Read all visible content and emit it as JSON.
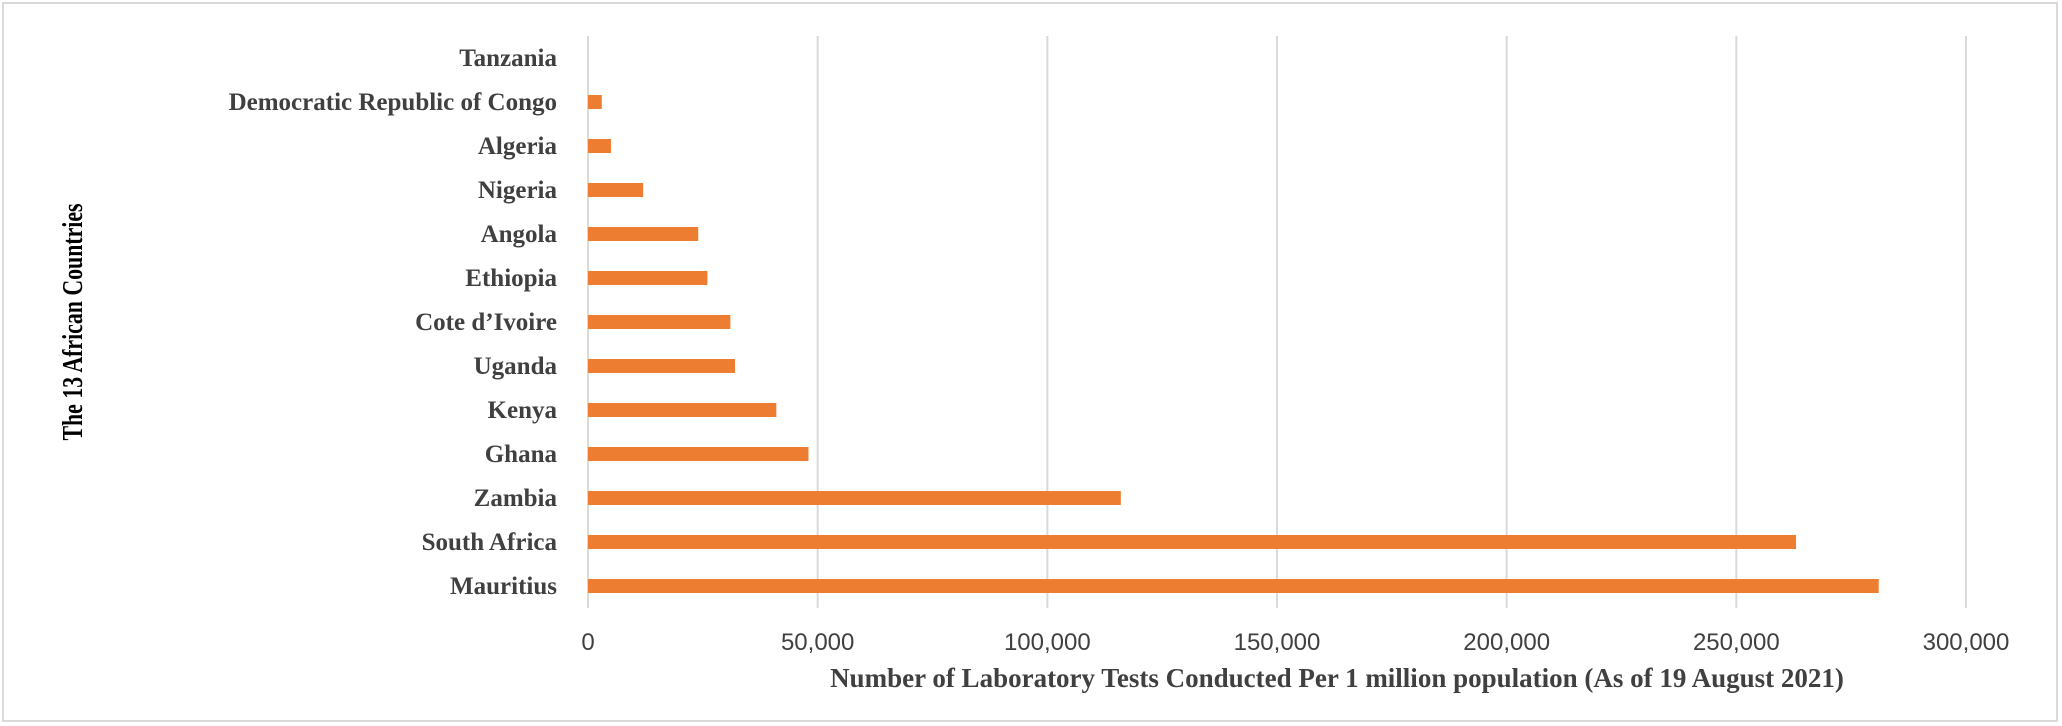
{
  "chart_data": {
    "type": "bar",
    "orientation": "horizontal",
    "xlabel": "Number of Laboratory Tests Conducted Per 1 million population (As of 19 August 2021)",
    "ylabel": "The 13 African Countries",
    "categories": [
      "Tanzania",
      "Democratic Republic of Congo",
      "Algeria",
      "Nigeria",
      "Angola",
      "Ethiopia",
      "Cote d’Ivoire",
      "Uganda",
      "Kenya",
      "Ghana",
      "Zambia",
      "South Africa",
      "Mauritius"
    ],
    "values": [
      0,
      3000,
      5000,
      12000,
      24000,
      26000,
      31000,
      32000,
      41000,
      48000,
      116000,
      263000,
      281000
    ],
    "xlim": [
      0,
      300000
    ],
    "xticks": [
      0,
      50000,
      100000,
      150000,
      200000,
      250000,
      300000
    ],
    "xtick_labels": [
      "0",
      "50,000",
      "100,000",
      "150,000",
      "200,000",
      "250,000",
      "300,000"
    ],
    "grid": "vertical",
    "legend": "none",
    "colors": {
      "bar": "#ed7d31",
      "grid": "#d9d9d9",
      "text": "#404040"
    }
  }
}
